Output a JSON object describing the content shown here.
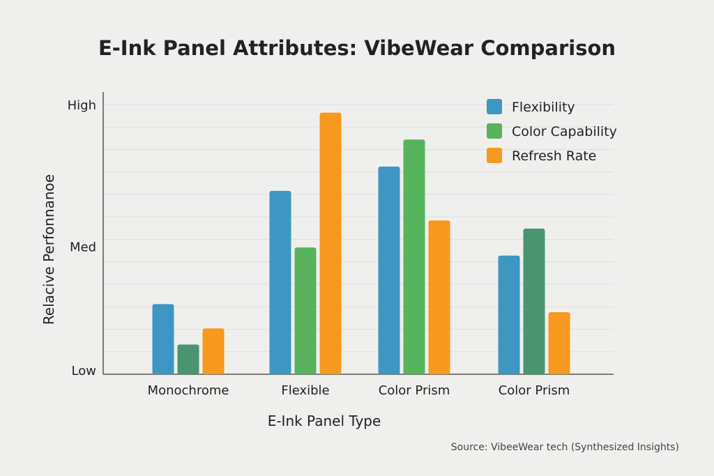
{
  "chart_data": {
    "type": "bar",
    "title": "E-Ink Panel Attributes: VibeWear Comparison",
    "xlabel": "E-Ink Panel Type",
    "ylabel": "Relacive Perfonnanoe",
    "categories": [
      "Monochrome",
      "Flexible",
      "Color Prism",
      "Color Prism"
    ],
    "y_ticks": [
      {
        "label": "Low",
        "value": 0
      },
      {
        "label": "Med",
        "value": 5
      },
      {
        "label": "High",
        "value": 10
      }
    ],
    "ylim": [
      0,
      10
    ],
    "grid": true,
    "legend_position": "top-right",
    "series": [
      {
        "name": "Flexibility",
        "color": "#3d97c2",
        "values": [
          2.6,
          6.8,
          7.7,
          4.4
        ]
      },
      {
        "name": "Color Capability",
        "color": "#57b35c",
        "values": [
          1.1,
          4.7,
          8.7,
          5.4
        ]
      },
      {
        "name": "Refresh Rate",
        "color": "#f7981f",
        "values": [
          1.7,
          9.7,
          5.7,
          2.3
        ]
      }
    ],
    "source": "Source:  VibeeWear tech (Synthesized Insights)"
  }
}
